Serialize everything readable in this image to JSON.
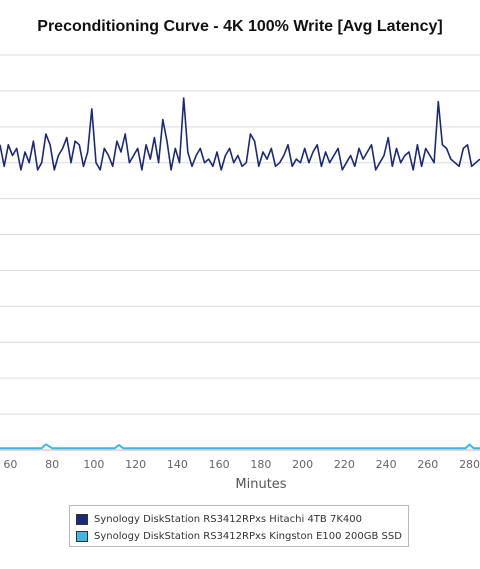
{
  "chart_data": {
    "type": "line",
    "title": "Preconditioning Curve - 4K 100% Write [Avg Latency]",
    "xlabel": "Minutes",
    "ylabel": "",
    "xlim": [
      55,
      285
    ],
    "ylim": [
      0,
      110
    ],
    "xticks": [
      60,
      80,
      100,
      120,
      140,
      160,
      180,
      200,
      220,
      240,
      260,
      280
    ],
    "grid": true,
    "legend": "bottom",
    "series": [
      {
        "name": "Synology DiskStation RS3412RPxs Hitachi 4TB 7K400",
        "color": "#1a2a7a",
        "x": [
          55,
          57,
          59,
          61,
          63,
          65,
          67,
          69,
          71,
          73,
          75,
          77,
          79,
          81,
          83,
          85,
          87,
          89,
          91,
          93,
          95,
          97,
          99,
          101,
          103,
          105,
          107,
          109,
          111,
          113,
          115,
          117,
          119,
          121,
          123,
          125,
          127,
          129,
          131,
          133,
          135,
          137,
          139,
          141,
          143,
          145,
          147,
          149,
          151,
          153,
          155,
          157,
          159,
          161,
          163,
          165,
          167,
          169,
          171,
          173,
          175,
          177,
          179,
          181,
          183,
          185,
          187,
          189,
          191,
          193,
          195,
          197,
          199,
          201,
          203,
          205,
          207,
          209,
          211,
          213,
          215,
          217,
          219,
          221,
          223,
          225,
          227,
          229,
          231,
          233,
          235,
          237,
          239,
          241,
          243,
          245,
          247,
          249,
          251,
          253,
          255,
          257,
          259,
          261,
          263,
          265,
          267,
          269,
          271,
          273,
          275,
          277,
          279,
          281,
          283,
          285
        ],
        "y": [
          85,
          79,
          85,
          82,
          84,
          78,
          83,
          80,
          86,
          78,
          80,
          88,
          85,
          78,
          82,
          84,
          87,
          80,
          86,
          85,
          79,
          83,
          95,
          80,
          78,
          84,
          82,
          79,
          86,
          83,
          88,
          80,
          82,
          84,
          78,
          85,
          81,
          87,
          80,
          92,
          86,
          78,
          84,
          80,
          98,
          83,
          79,
          82,
          84,
          80,
          81,
          79,
          83,
          78,
          82,
          84,
          80,
          82,
          79,
          80,
          88,
          86,
          79,
          83,
          81,
          84,
          79,
          80,
          82,
          85,
          79,
          81,
          80,
          84,
          80,
          83,
          85,
          79,
          83,
          80,
          82,
          84,
          78,
          80,
          82,
          79,
          84,
          81,
          83,
          85,
          78,
          80,
          82,
          87,
          79,
          84,
          80,
          82,
          83,
          78,
          85,
          79,
          84,
          82,
          80,
          97,
          85,
          84,
          81,
          80,
          79,
          84,
          85,
          79,
          80,
          81
        ]
      },
      {
        "name": "Synology DiskStation RS3412RPxs Kingston E100 200GB SSD",
        "color": "#3fb6e6",
        "x": [
          55,
          65,
          70,
          75,
          77,
          80,
          82,
          90,
          100,
          110,
          112,
          114,
          120,
          130,
          140,
          150,
          160,
          170,
          180,
          190,
          200,
          210,
          220,
          230,
          240,
          250,
          260,
          270,
          278,
          280,
          282,
          285
        ],
        "y": [
          0.5,
          0.5,
          0.5,
          0.5,
          1.6,
          0.5,
          0.5,
          0.5,
          0.5,
          0.5,
          1.4,
          0.5,
          0.5,
          0.5,
          0.5,
          0.5,
          0.5,
          0.5,
          0.5,
          0.5,
          0.5,
          0.5,
          0.5,
          0.5,
          0.5,
          0.5,
          0.5,
          0.5,
          0.5,
          1.5,
          0.5,
          0.5
        ]
      }
    ]
  }
}
